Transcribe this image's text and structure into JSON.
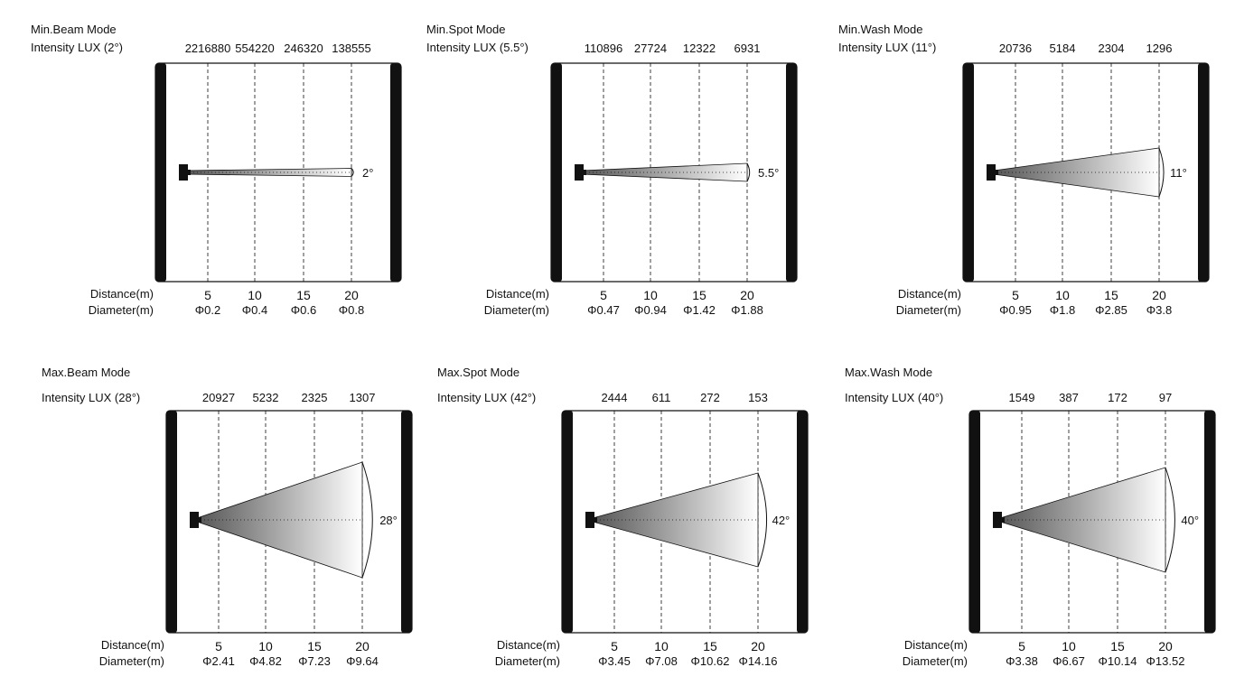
{
  "colors": {
    "ink": "#111111",
    "beam_dark": "#555555",
    "beam_light": "#ffffff"
  },
  "labels": {
    "distance_label": "Distance(m)",
    "diameter_label": "Diameter(m)",
    "distances": [
      "5",
      "10",
      "15",
      "20"
    ]
  },
  "panels": [
    {
      "title": "Min.Beam Mode",
      "intensity_label": "Intensity LUX (2°)",
      "lux": [
        "2216880",
        "554220",
        "246320",
        "138555"
      ],
      "angle_label": "2°",
      "angle_deg": 2,
      "diameters": [
        "Φ0.2",
        "Φ0.4",
        "Φ0.6",
        "Φ0.8"
      ]
    },
    {
      "title": "Min.Spot Mode",
      "intensity_label": "Intensity LUX (5.5°)",
      "lux": [
        "110896",
        "27724",
        "12322",
        "6931"
      ],
      "angle_label": "5.5°",
      "angle_deg": 5.5,
      "diameters": [
        "Φ0.47",
        "Φ0.94",
        "Φ1.42",
        "Φ1.88"
      ]
    },
    {
      "title": "Min.Wash Mode",
      "intensity_label": "Intensity LUX (11°)",
      "lux": [
        "20736",
        "5184",
        "2304",
        "1296"
      ],
      "angle_label": "11°",
      "angle_deg": 11,
      "diameters": [
        "Φ0.95",
        "Φ1.8",
        "Φ2.85",
        "Φ3.8"
      ]
    },
    {
      "title": "Max.Beam Mode",
      "intensity_label": "Intensity LUX (28°)",
      "lux": [
        "20927",
        "5232",
        "2325",
        "1307"
      ],
      "angle_label": "28°",
      "angle_deg": 28,
      "diameters": [
        "Φ2.41",
        "Φ4.82",
        "Φ7.23",
        "Φ9.64"
      ]
    },
    {
      "title": "Max.Spot Mode",
      "intensity_label": "Intensity LUX (42°)",
      "lux": [
        "2444",
        "611",
        "272",
        "153"
      ],
      "angle_label": "42°",
      "angle_deg": 42,
      "diameters": [
        "Φ3.45",
        "Φ7.08",
        "Φ10.62",
        "Φ14.16"
      ]
    },
    {
      "title": "Max.Wash Mode",
      "intensity_label": "Intensity LUX (40°)",
      "lux": [
        "1549",
        "387",
        "172",
        "97"
      ],
      "angle_label": "40°",
      "angle_deg": 40,
      "diameters": [
        "Φ3.38",
        "Φ6.67",
        "Φ10.14",
        "Φ13.52"
      ]
    }
  ]
}
